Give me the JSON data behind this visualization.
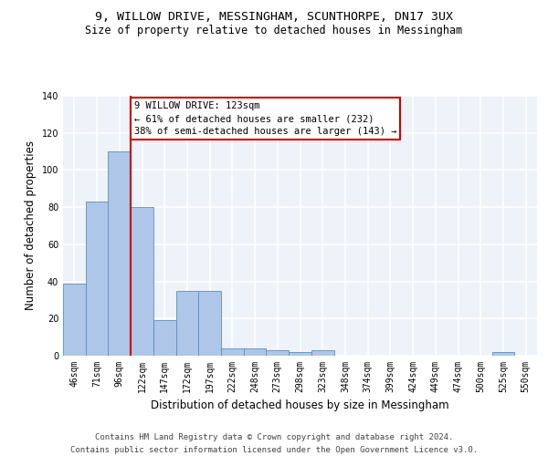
{
  "title_line1": "9, WILLOW DRIVE, MESSINGHAM, SCUNTHORPE, DN17 3UX",
  "title_line2": "Size of property relative to detached houses in Messingham",
  "xlabel": "Distribution of detached houses by size in Messingham",
  "ylabel": "Number of detached properties",
  "categories": [
    "46sqm",
    "71sqm",
    "96sqm",
    "122sqm",
    "147sqm",
    "172sqm",
    "197sqm",
    "222sqm",
    "248sqm",
    "273sqm",
    "298sqm",
    "323sqm",
    "348sqm",
    "374sqm",
    "399sqm",
    "424sqm",
    "449sqm",
    "474sqm",
    "500sqm",
    "525sqm",
    "550sqm"
  ],
  "values": [
    39,
    83,
    110,
    80,
    19,
    35,
    35,
    4,
    4,
    3,
    2,
    3,
    0,
    0,
    0,
    0,
    0,
    0,
    0,
    2,
    0
  ],
  "bar_color": "#aec6e8",
  "bar_edge_color": "#5a8fc0",
  "property_line_index": 3,
  "annotation_title": "9 WILLOW DRIVE: 123sqm",
  "annotation_line2": "← 61% of detached houses are smaller (232)",
  "annotation_line3": "38% of semi-detached houses are larger (143) →",
  "annotation_box_color": "#ffffff",
  "annotation_box_edge": "#cc0000",
  "property_line_color": "#cc0000",
  "ylim": [
    0,
    140
  ],
  "yticks": [
    0,
    20,
    40,
    60,
    80,
    100,
    120,
    140
  ],
  "footer_line1": "Contains HM Land Registry data © Crown copyright and database right 2024.",
  "footer_line2": "Contains public sector information licensed under the Open Government Licence v3.0.",
  "bg_color": "#eef2f9",
  "grid_color": "#ffffff",
  "title_fontsize": 9.5,
  "subtitle_fontsize": 8.5,
  "axis_label_fontsize": 8.5,
  "tick_fontsize": 7,
  "footer_fontsize": 6.5,
  "annotation_fontsize": 7.5
}
